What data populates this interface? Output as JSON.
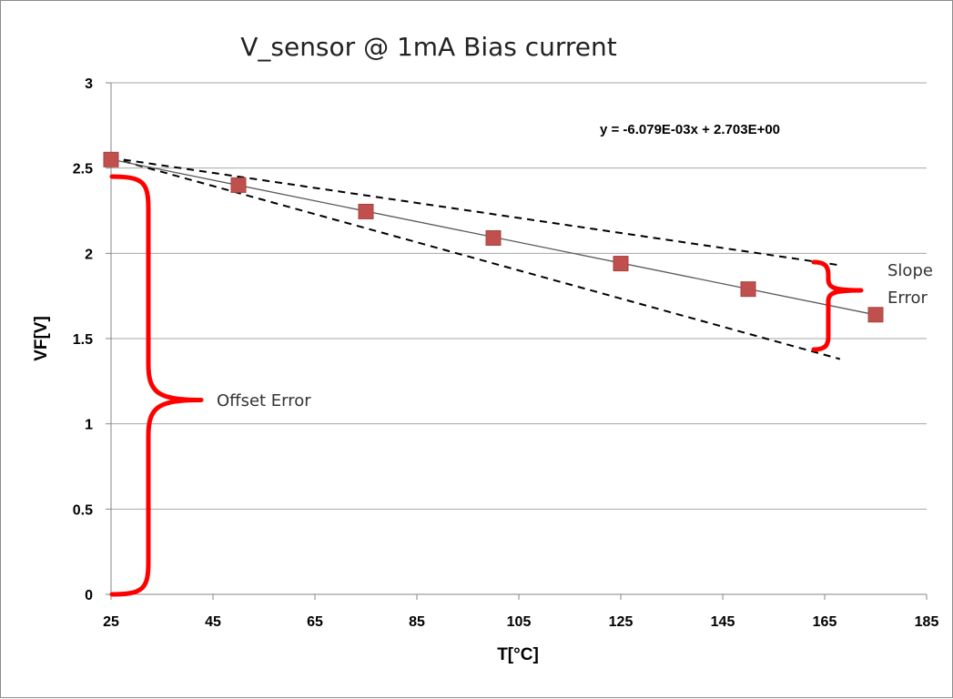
{
  "chart_data": {
    "type": "scatter",
    "title": "V_sensor @ 1mA Bias current",
    "xlabel": "T[°C]",
    "ylabel": "VF[V]",
    "xlim": [
      25,
      185
    ],
    "ylim": [
      0,
      3
    ],
    "x_ticks": [
      25,
      45,
      65,
      85,
      105,
      125,
      145,
      165,
      185
    ],
    "y_ticks": [
      0,
      0.5,
      1,
      1.5,
      2,
      2.5,
      3
    ],
    "x_tick_labels": [
      "25",
      "45",
      "65",
      "85",
      "105",
      "125",
      "145",
      "165",
      "185"
    ],
    "y_tick_labels": [
      "0",
      "0.5",
      "1",
      "1.5",
      "2",
      "2.5",
      "3"
    ],
    "grid": true,
    "series": [
      {
        "values_x": [
          25,
          50,
          75,
          100,
          125,
          150,
          175
        ],
        "values_y": [
          2.55,
          2.4,
          2.245,
          2.09,
          1.94,
          1.79,
          1.64
        ],
        "marker_color": "#c0504d"
      }
    ],
    "trendline": {
      "equation": "y = -6.079E-03x + 2.703E+00",
      "slope": -0.006079,
      "intercept": 2.703,
      "x_range": [
        25,
        175
      ],
      "color": "#595959"
    },
    "dashed_lines": [
      {
        "x": [
          25,
          168
        ],
        "y": [
          2.56,
          1.93
        ]
      },
      {
        "x": [
          25,
          168
        ],
        "y": [
          2.56,
          1.38
        ]
      }
    ],
    "annotations": {
      "offset_error": "Offset Error",
      "slope_error_line1": "Slope",
      "slope_error_line2": "Error",
      "bracket_color": "#ff0000"
    }
  }
}
